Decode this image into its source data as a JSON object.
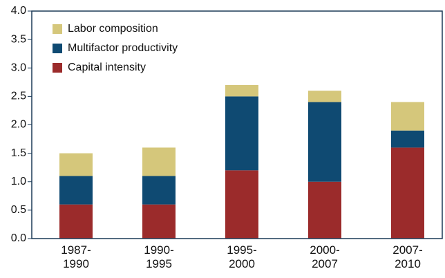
{
  "chart_data": {
    "type": "stacked_bar",
    "categories": [
      "1987-\n1990",
      "1990-\n1995",
      "1995-\n2000",
      "2000-\n2007",
      "2007-\n2010"
    ],
    "series": [
      {
        "name": "Capital intensity",
        "color": "#9b2b2b",
        "values": [
          0.6,
          0.6,
          1.2,
          1.0,
          1.6
        ]
      },
      {
        "name": "Multifactor productivity",
        "color": "#0f4a72",
        "values": [
          0.5,
          0.5,
          1.3,
          1.4,
          0.3
        ]
      },
      {
        "name": "Labor composition",
        "color": "#d5c77b",
        "values": [
          0.4,
          0.5,
          0.2,
          0.2,
          0.5
        ]
      }
    ],
    "ylim": [
      0,
      4
    ],
    "yticks": [
      {
        "value": 0,
        "label": "0.0"
      },
      0.5,
      {
        "value": 1,
        "label": "1.0"
      },
      1.5,
      {
        "value": 2,
        "label": "2.0"
      },
      2.5,
      {
        "value": 3,
        "label": "3.0"
      },
      3.5,
      {
        "value": 4,
        "label": "4.0"
      }
    ],
    "legend": "upper left"
  }
}
